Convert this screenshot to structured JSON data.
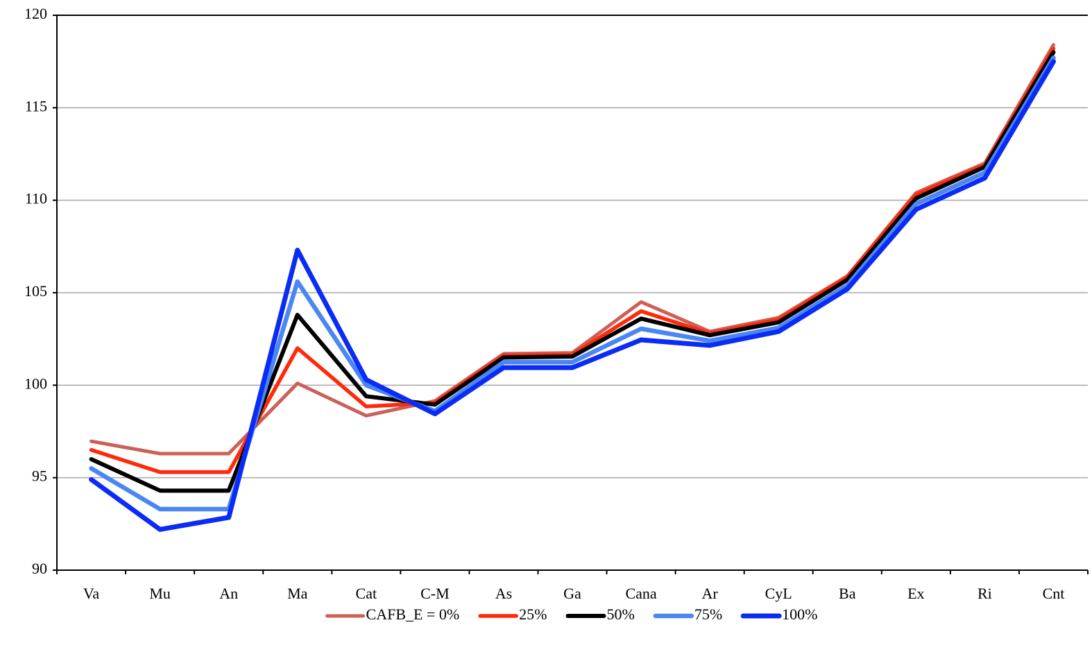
{
  "chart_data": {
    "type": "line",
    "categories": [
      "Va",
      "Mu",
      "An",
      "Ma",
      "Cat",
      "C-M",
      "As",
      "Ga",
      "Cana",
      "Ar",
      "CyL",
      "Ba",
      "Ex",
      "Ri",
      "Cnt"
    ],
    "series": [
      {
        "name": "CAFB_E = 0%",
        "color": "#cc6058",
        "values": [
          96.97,
          96.3,
          96.3,
          100.1,
          98.35,
          99.15,
          101.7,
          101.75,
          104.5,
          102.9,
          103.65,
          105.9,
          110.4,
          112.0,
          118.4
        ]
      },
      {
        "name": "25%",
        "color": "#ff2a0a",
        "values": [
          96.5,
          95.3,
          95.3,
          102.0,
          98.85,
          99.05,
          101.6,
          101.65,
          104.0,
          102.8,
          103.55,
          105.85,
          110.3,
          111.9,
          118.2
        ]
      },
      {
        "name": "50%",
        "color": "#000000",
        "values": [
          96.0,
          94.3,
          94.3,
          103.8,
          99.4,
          98.95,
          101.5,
          101.55,
          103.6,
          102.7,
          103.4,
          105.7,
          110.1,
          111.8,
          118.0
        ]
      },
      {
        "name": "75%",
        "color": "#4a86f5",
        "values": [
          95.5,
          93.3,
          93.3,
          105.6,
          100.0,
          98.6,
          101.25,
          101.25,
          103.05,
          102.4,
          103.1,
          105.4,
          109.8,
          111.5,
          117.7
        ]
      },
      {
        "name": "100%",
        "color": "#0a2cf5",
        "values": [
          94.9,
          92.2,
          92.85,
          107.3,
          100.3,
          98.45,
          100.95,
          100.95,
          102.45,
          102.15,
          102.9,
          105.2,
          109.5,
          111.2,
          117.5
        ]
      }
    ],
    "ylim": [
      90,
      120
    ],
    "yticks": [
      90,
      95,
      100,
      105,
      110,
      115,
      120
    ],
    "grid": true,
    "legend": "bottom"
  }
}
